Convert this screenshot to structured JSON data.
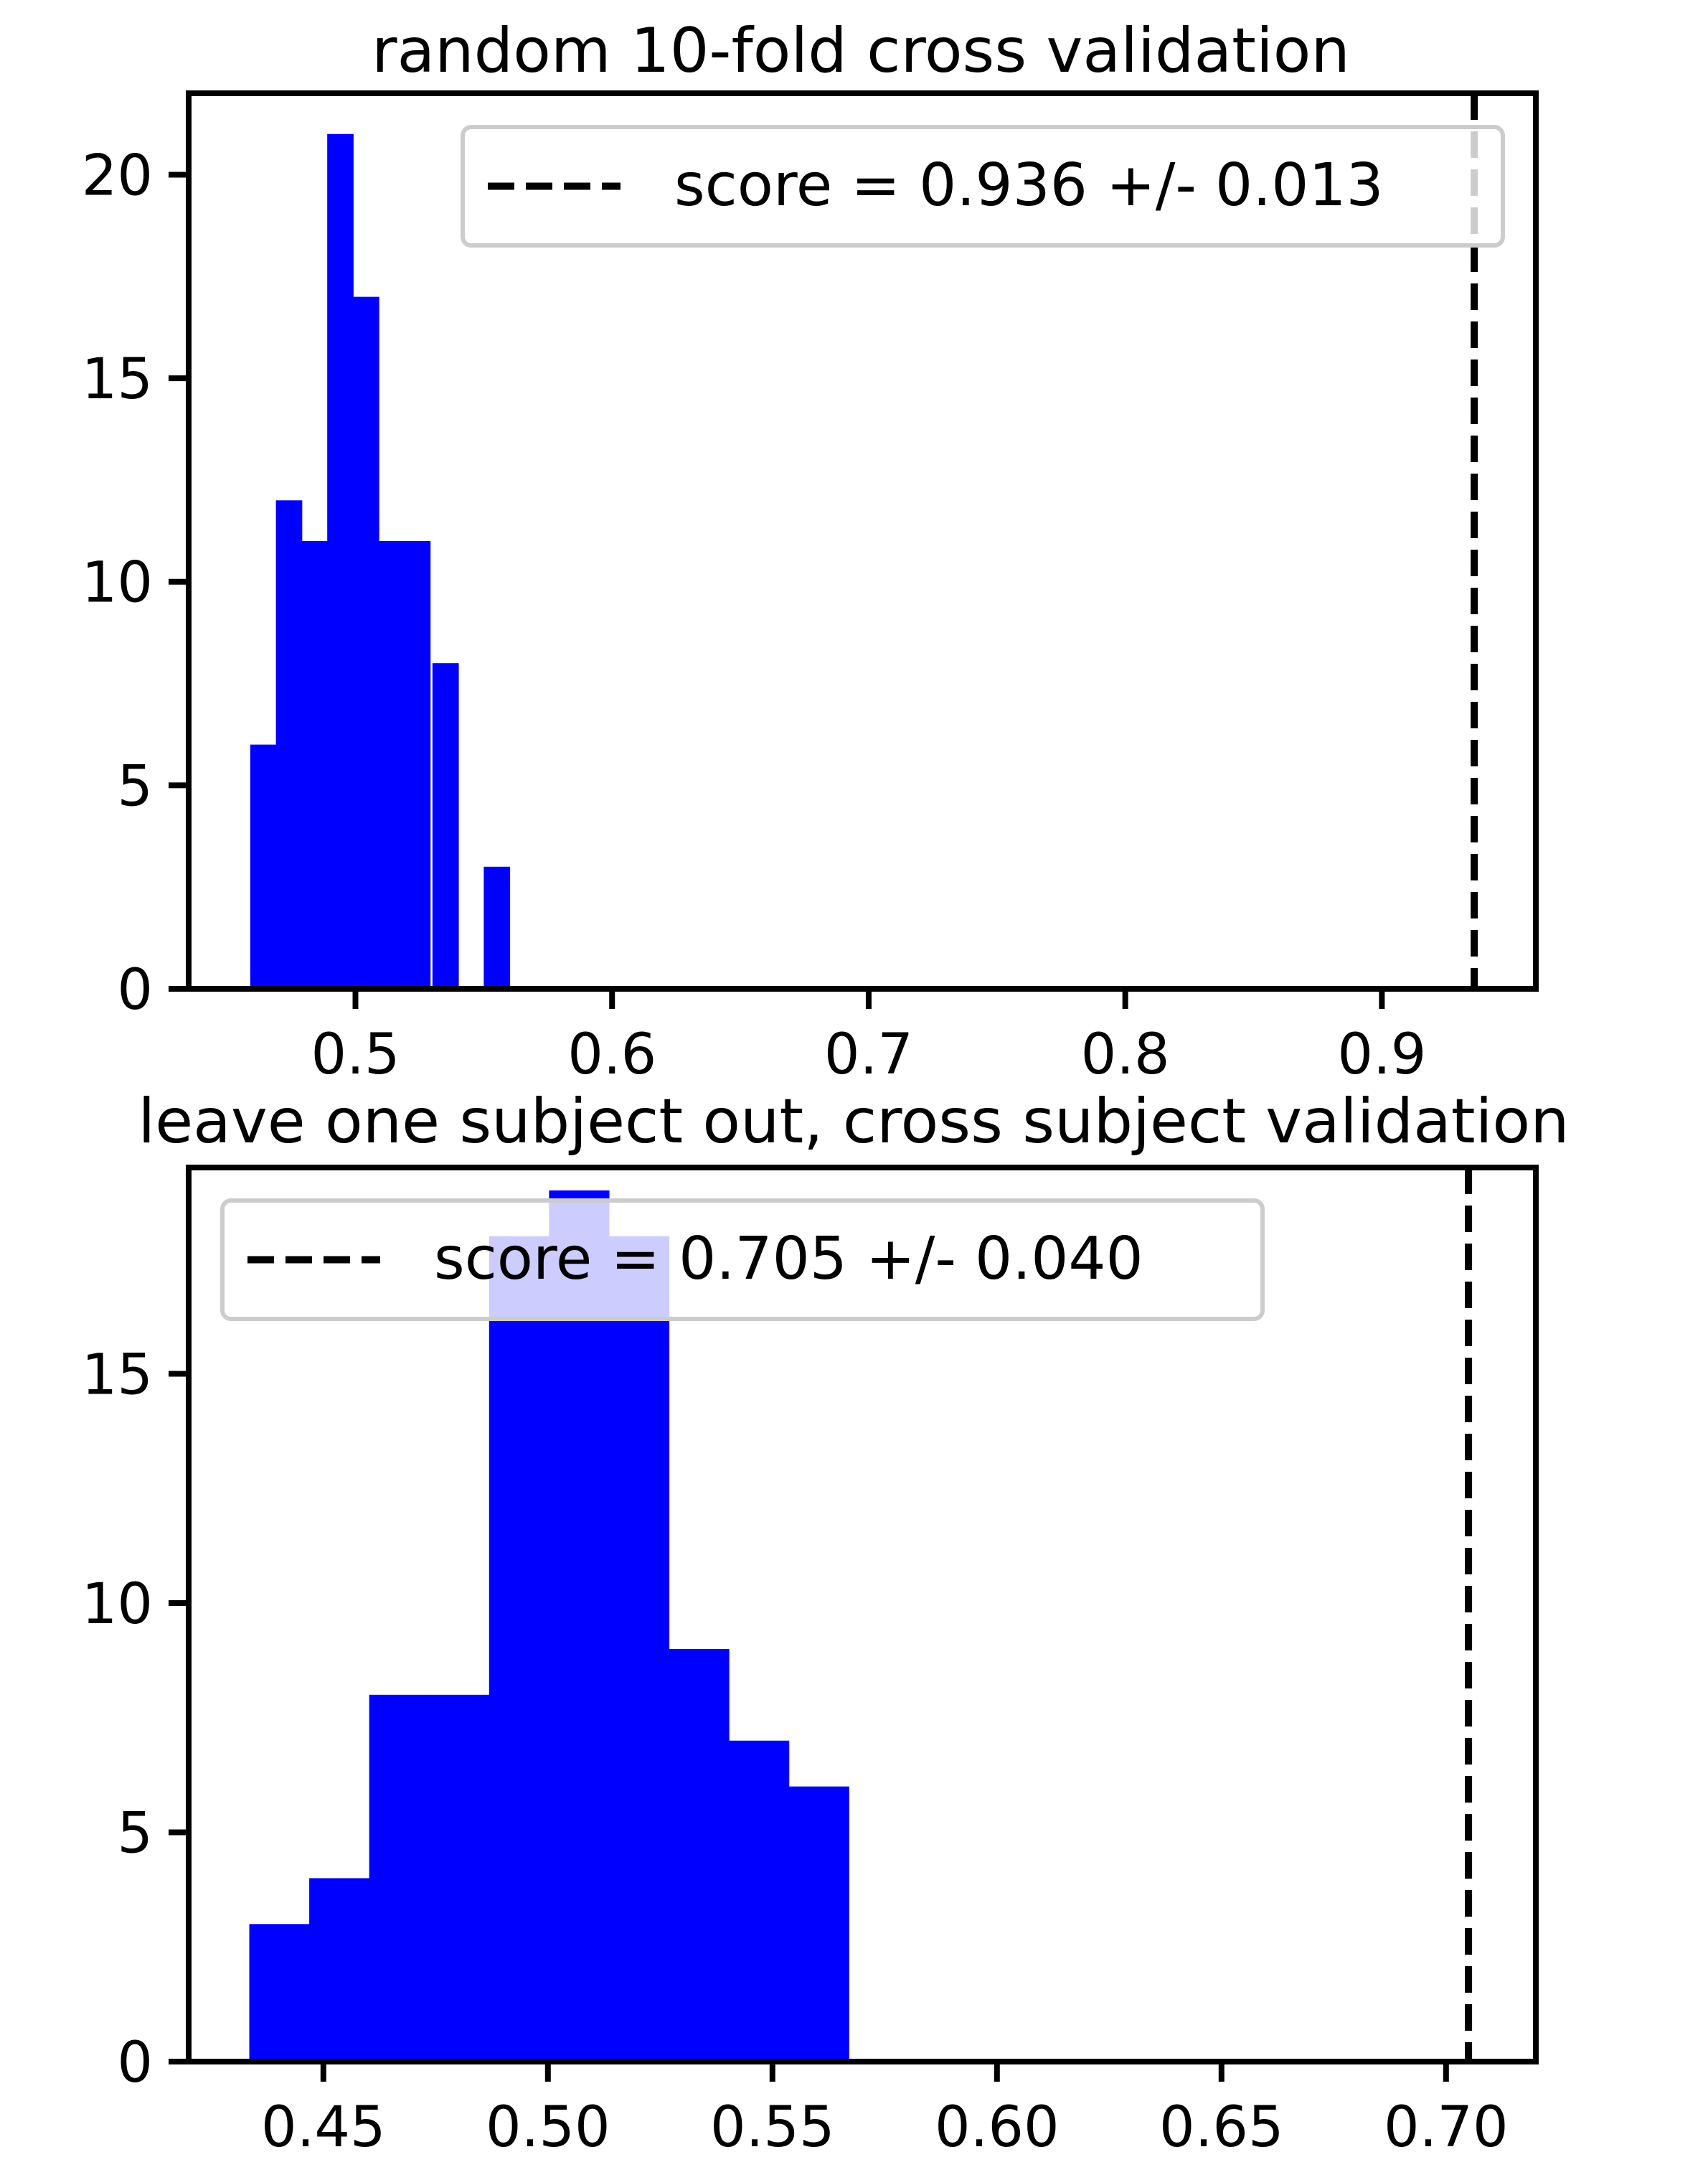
{
  "chart_data": [
    {
      "type": "bar",
      "title": "random 10-fold cross validation",
      "xlabel": "",
      "ylabel": "",
      "xlim": [
        0.435,
        0.96
      ],
      "ylim": [
        0,
        22
      ],
      "xticks": [
        0.5,
        0.6,
        0.7,
        0.8,
        0.9
      ],
      "xtick_labels": [
        "0.5",
        "0.6",
        "0.7",
        "0.8",
        "0.9"
      ],
      "yticks": [
        0,
        5,
        10,
        15,
        20
      ],
      "ytick_labels": [
        "0",
        "5",
        "10",
        "15",
        "20"
      ],
      "bin_width": 0.0101,
      "bins": [
        {
          "x0": 0.459,
          "height": 6
        },
        {
          "x0": 0.469,
          "height": 12
        },
        {
          "x0": 0.479,
          "height": 11
        },
        {
          "x0": 0.489,
          "height": 21
        },
        {
          "x0": 0.499,
          "height": 17
        },
        {
          "x0": 0.509,
          "height": 11
        },
        {
          "x0": 0.519,
          "height": 11
        },
        {
          "x0": 0.53,
          "height": 8
        },
        {
          "x0": 0.54,
          "height": 0
        },
        {
          "x0": 0.55,
          "height": 3
        }
      ],
      "score_line": {
        "x": 0.936,
        "style": "dashed",
        "color": "#000000"
      },
      "legend": {
        "label": "score = 0.936 +/- 0.013",
        "location": "upper right"
      },
      "bar_color": "#0000ff",
      "grid": false
    },
    {
      "type": "bar",
      "title": "leave one subject out, cross subject validation",
      "xlabel": "",
      "ylabel": "",
      "xlim": [
        0.42,
        0.72
      ],
      "ylim": [
        0,
        19.5
      ],
      "xticks": [
        0.45,
        0.5,
        0.55,
        0.6,
        0.65,
        0.7
      ],
      "xtick_labels": [
        "0.45",
        "0.50",
        "0.55",
        "0.60",
        "0.65",
        "0.70"
      ],
      "yticks": [
        0,
        5,
        10,
        15
      ],
      "ytick_labels": [
        "0",
        "5",
        "10",
        "15"
      ],
      "bin_width": 0.01335,
      "bins": [
        {
          "x0": 0.4335,
          "height": 3
        },
        {
          "x0": 0.44685,
          "height": 4
        },
        {
          "x0": 0.4602,
          "height": 8
        },
        {
          "x0": 0.47355,
          "height": 8
        },
        {
          "x0": 0.4869,
          "height": 18
        },
        {
          "x0": 0.50025,
          "height": 19
        },
        {
          "x0": 0.5136,
          "height": 18
        },
        {
          "x0": 0.52695,
          "height": 9
        },
        {
          "x0": 0.5403,
          "height": 7
        },
        {
          "x0": 0.55365,
          "height": 6
        }
      ],
      "score_line": {
        "x": 0.705,
        "style": "dashed",
        "color": "#000000"
      },
      "legend": {
        "label": "score = 0.705 +/- 0.040",
        "location": "upper left"
      },
      "bar_color": "#0000ff",
      "grid": false
    }
  ]
}
